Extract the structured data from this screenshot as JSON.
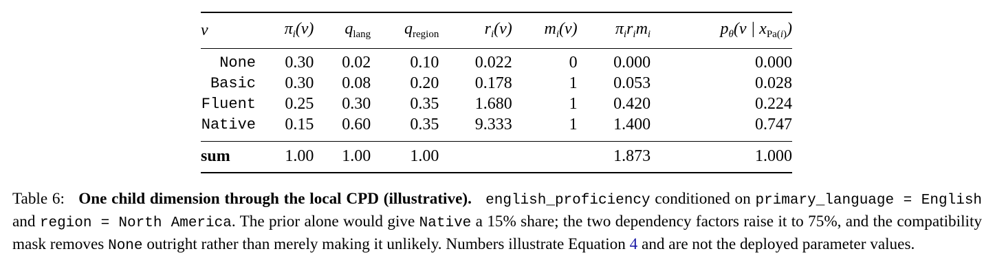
{
  "table": {
    "columns": [
      "v",
      "πi(v)",
      "qlang",
      "qregion",
      "ri(v)",
      "mi(v)",
      "πirimi",
      "pθ(v | xPa(i))"
    ],
    "rows": [
      {
        "v": "None",
        "pi": "0.30",
        "q_lang": "0.02",
        "q_region": "0.10",
        "r": "0.022",
        "m": "0",
        "prod": "0.000",
        "p": "0.000"
      },
      {
        "v": "Basic",
        "pi": "0.30",
        "q_lang": "0.08",
        "q_region": "0.20",
        "r": "0.178",
        "m": "1",
        "prod": "0.053",
        "p": "0.028"
      },
      {
        "v": "Fluent",
        "pi": "0.25",
        "q_lang": "0.30",
        "q_region": "0.35",
        "r": "1.680",
        "m": "1",
        "prod": "0.420",
        "p": "0.224"
      },
      {
        "v": "Native",
        "pi": "0.15",
        "q_lang": "0.60",
        "q_region": "0.35",
        "r": "9.333",
        "m": "1",
        "prod": "1.400",
        "p": "0.747"
      }
    ],
    "sum": {
      "label": "sum",
      "pi": "1.00",
      "q_lang": "1.00",
      "q_region": "1.00",
      "r": "",
      "m": "",
      "prod": "1.873",
      "p": "1.000"
    }
  },
  "caption": {
    "label": "Table 6:",
    "lead": "One child dimension through the local CPD (illustrative).",
    "t1": "english_proficiency",
    "t2": " conditioned on ",
    "t3": "primary_language = English",
    "t4": " and ",
    "t5": "region = North America",
    "t6": ". The prior alone would give ",
    "t7": "Native",
    "t8": " a 15% share; the two dependency factors raise it to 75%, and the compatibility mask removes ",
    "t9": "None",
    "t10": " outright rather than merely making it unlikely. Numbers illustrate Equation ",
    "ref": "4",
    "t11": " and are not the deployed parameter values."
  }
}
